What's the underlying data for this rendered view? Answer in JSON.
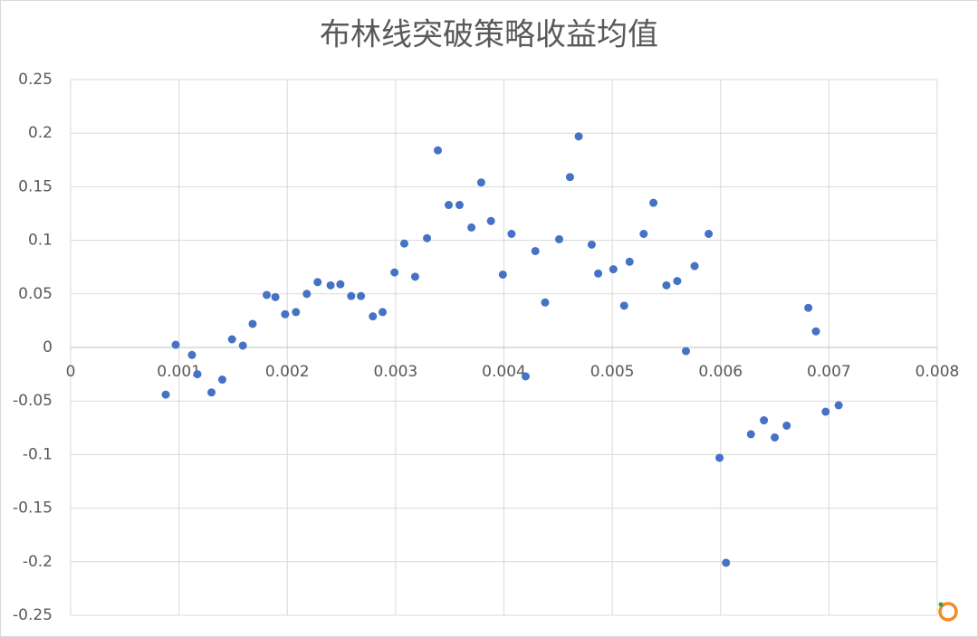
{
  "chart_data": {
    "type": "scatter",
    "title": "布林线突破策略收益均值",
    "color": "#4472c4",
    "grid": true,
    "xlim": [
      0,
      0.008
    ],
    "xticks": [
      0,
      0.001,
      0.002,
      0.003,
      0.004,
      0.005,
      0.006,
      0.007,
      0.008
    ],
    "ylim": [
      -0.25,
      0.25
    ],
    "yticks": [
      -0.25,
      -0.2,
      -0.15,
      -0.1,
      -0.05,
      0,
      0.05,
      0.1,
      0.15,
      0.2,
      0.25
    ],
    "x": [
      0.000878,
      0.00097,
      0.00112,
      0.00117,
      0.0013,
      0.0014,
      0.00149,
      0.00159,
      0.00168,
      0.00181,
      0.00189,
      0.00198,
      0.00208,
      0.00218,
      0.00228,
      0.0024,
      0.00249,
      0.00259,
      0.00268,
      0.00279,
      0.00288,
      0.00299,
      0.00308,
      0.00318,
      0.00329,
      0.00339,
      0.00349,
      0.00359,
      0.0037,
      0.00379,
      0.00388,
      0.00399,
      0.00407,
      0.0042,
      0.00429,
      0.00438,
      0.00451,
      0.00461,
      0.00469,
      0.00481,
      0.00487,
      0.00501,
      0.00511,
      0.00516,
      0.00529,
      0.00538,
      0.0055,
      0.0056,
      0.00568,
      0.00576,
      0.00589,
      0.00599,
      0.00605,
      0.00628,
      0.0064,
      0.0065,
      0.00661,
      0.00681,
      0.00688,
      0.00697,
      0.00709
    ],
    "values": [
      -0.044,
      0.0025,
      -0.007,
      -0.025,
      -0.042,
      -0.03,
      0.0076,
      0.0017,
      0.022,
      0.049,
      0.047,
      0.031,
      0.033,
      0.05,
      0.061,
      0.058,
      0.059,
      0.048,
      0.048,
      0.029,
      0.033,
      0.07,
      0.097,
      0.066,
      0.102,
      0.184,
      0.133,
      0.133,
      0.112,
      0.154,
      0.118,
      0.068,
      0.106,
      -0.027,
      0.09,
      0.042,
      0.101,
      0.159,
      0.197,
      0.096,
      0.069,
      0.073,
      0.039,
      0.08,
      0.106,
      0.135,
      0.058,
      0.062,
      -0.0034,
      0.076,
      0.106,
      -0.103,
      -0.201,
      -0.081,
      -0.068,
      -0.084,
      -0.073,
      0.037,
      0.015,
      -0.06,
      -0.054
    ]
  }
}
